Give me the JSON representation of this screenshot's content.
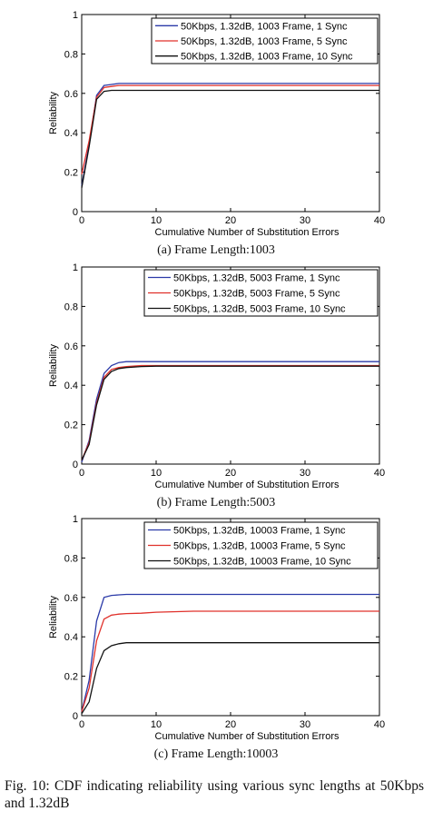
{
  "figure_caption": "Fig. 10: CDF indicating reliability using various sync lengths at 50Kbps and 1.32dB",
  "chart_data": [
    {
      "type": "line",
      "subcaption": "(a) Frame Length:1003",
      "xlabel": "Cumulative Number of Substitution Errors",
      "ylabel": "Reliability",
      "xlim": [
        0,
        40
      ],
      "ylim": [
        0,
        1
      ],
      "xticks": [
        "0",
        "10",
        "20",
        "30",
        "40"
      ],
      "yticks": [
        "0",
        "0.2",
        "0.4",
        "0.6",
        "0.8",
        "1"
      ],
      "grid": false,
      "legend_position": "top-right",
      "series": [
        {
          "name": "50Kbps, 1.32dB, 1003 Frame, 1 Sync",
          "color": "#2b3aa8",
          "x": [
            0,
            1,
            2,
            3,
            4,
            5,
            6,
            8,
            10,
            40
          ],
          "y": [
            0.13,
            0.34,
            0.59,
            0.64,
            0.645,
            0.65,
            0.65,
            0.65,
            0.65,
            0.65
          ]
        },
        {
          "name": "50Kbps, 1.32dB, 1003 Frame, 5 Sync",
          "color": "#e0302a",
          "x": [
            0,
            1,
            2,
            3,
            4,
            5,
            6,
            8,
            10,
            40
          ],
          "y": [
            0.19,
            0.36,
            0.58,
            0.63,
            0.635,
            0.64,
            0.64,
            0.64,
            0.64,
            0.64
          ]
        },
        {
          "name": "50Kbps, 1.32dB, 1003 Frame, 10 Sync",
          "color": "#111111",
          "x": [
            0,
            1,
            2,
            3,
            4,
            5,
            6,
            8,
            10,
            40
          ],
          "y": [
            0.12,
            0.33,
            0.57,
            0.61,
            0.615,
            0.615,
            0.615,
            0.615,
            0.615,
            0.615
          ]
        }
      ]
    },
    {
      "type": "line",
      "subcaption": "(b) Frame Length:5003",
      "xlabel": "Cumulative Number of Substitution Errors",
      "ylabel": "Reliability",
      "xlim": [
        0,
        40
      ],
      "ylim": [
        0,
        1
      ],
      "xticks": [
        "0",
        "10",
        "20",
        "30",
        "40"
      ],
      "yticks": [
        "0",
        "0.2",
        "0.4",
        "0.6",
        "0.8",
        "1"
      ],
      "grid": false,
      "legend_position": "top-right",
      "series": [
        {
          "name": "50Kbps, 1.32dB, 5003 Frame, 1 Sync",
          "color": "#2b3aa8",
          "x": [
            0,
            1,
            2,
            3,
            4,
            5,
            6,
            8,
            10,
            40
          ],
          "y": [
            0.01,
            0.12,
            0.33,
            0.46,
            0.5,
            0.515,
            0.52,
            0.52,
            0.52,
            0.52
          ]
        },
        {
          "name": "50Kbps, 1.32dB, 5003 Frame, 5 Sync",
          "color": "#e0302a",
          "x": [
            0,
            1,
            2,
            3,
            4,
            5,
            6,
            8,
            10,
            40
          ],
          "y": [
            0.02,
            0.11,
            0.31,
            0.44,
            0.48,
            0.49,
            0.495,
            0.5,
            0.5,
            0.5
          ]
        },
        {
          "name": "50Kbps, 1.32dB, 5003 Frame, 10 Sync",
          "color": "#111111",
          "x": [
            0,
            1,
            2,
            3,
            4,
            5,
            6,
            8,
            10,
            40
          ],
          "y": [
            0.02,
            0.1,
            0.3,
            0.43,
            0.47,
            0.485,
            0.49,
            0.495,
            0.497,
            0.497
          ]
        }
      ]
    },
    {
      "type": "line",
      "subcaption": "(c) Frame Length:10003",
      "xlabel": "Cumulative Number of Substitution Errors",
      "ylabel": "Reliability",
      "xlim": [
        0,
        40
      ],
      "ylim": [
        0,
        1
      ],
      "xticks": [
        "0",
        "10",
        "20",
        "30",
        "40"
      ],
      "yticks": [
        "0",
        "0.2",
        "0.4",
        "0.6",
        "0.8",
        "1"
      ],
      "grid": false,
      "legend_position": "top-right",
      "series": [
        {
          "name": "50Kbps, 1.32dB, 10003 Frame, 1 Sync",
          "color": "#2b3aa8",
          "x": [
            0,
            1,
            2,
            3,
            4,
            5,
            6,
            8,
            10,
            40
          ],
          "y": [
            0.02,
            0.18,
            0.48,
            0.6,
            0.61,
            0.613,
            0.615,
            0.615,
            0.615,
            0.615
          ]
        },
        {
          "name": "50Kbps, 1.32dB, 10003 Frame, 5 Sync",
          "color": "#e0302a",
          "x": [
            0,
            1,
            2,
            3,
            4,
            5,
            6,
            8,
            10,
            15,
            40
          ],
          "y": [
            0.02,
            0.14,
            0.38,
            0.49,
            0.51,
            0.515,
            0.518,
            0.52,
            0.525,
            0.53,
            0.53
          ]
        },
        {
          "name": "50Kbps, 1.32dB, 10003 Frame, 10 Sync",
          "color": "#111111",
          "x": [
            0,
            1,
            2,
            3,
            4,
            5,
            6,
            8,
            10,
            40
          ],
          "y": [
            0.01,
            0.07,
            0.24,
            0.33,
            0.355,
            0.365,
            0.37,
            0.37,
            0.37,
            0.37
          ]
        }
      ]
    }
  ]
}
